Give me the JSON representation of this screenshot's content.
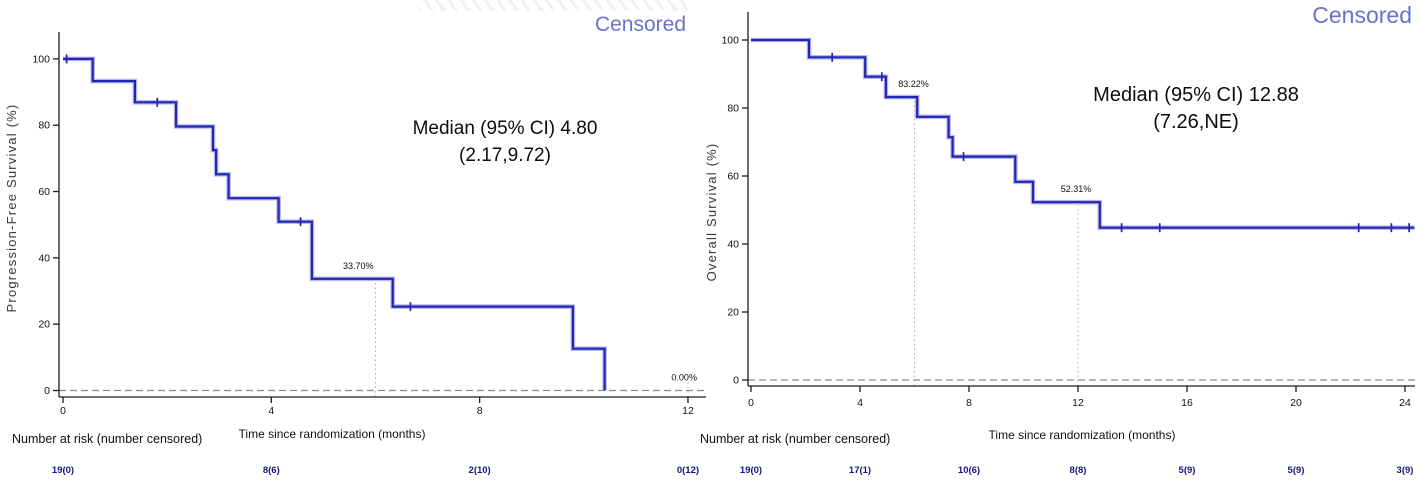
{
  "colors": {
    "curve": "#2424b2",
    "censored_text": "#6673c9",
    "risk_text": "#15157e"
  },
  "chart_data": [
    {
      "type": "line",
      "subtype": "kaplan-meier-step",
      "ylabel": "Progression-Free Survival (%)",
      "xlabel": "Time since randomization (months)",
      "censored_label": "Censored",
      "median_label": [
        "Median (95% CI) 4.80",
        "(2.17,9.72)"
      ],
      "xlim": [
        0,
        12
      ],
      "ylim": [
        0,
        100
      ],
      "x_ticks": [
        0,
        4,
        8,
        12
      ],
      "y_ticks": [
        0,
        20,
        40,
        60,
        80,
        100
      ],
      "steps": [
        [
          0,
          100
        ],
        [
          0.57,
          93.3
        ],
        [
          1.38,
          86.9
        ],
        [
          2.17,
          79.6
        ],
        [
          2.88,
          72.5
        ],
        [
          2.94,
          65.2
        ],
        [
          3.18,
          58.0
        ],
        [
          4.14,
          50.9
        ],
        [
          4.78,
          33.7
        ],
        [
          6.33,
          25.3
        ],
        [
          9.79,
          12.6
        ],
        [
          10.4,
          0
        ]
      ],
      "censor_marks": [
        [
          0.07,
          100
        ],
        [
          1.81,
          86.9
        ],
        [
          4.56,
          50.9
        ],
        [
          6.67,
          25.3
        ]
      ],
      "end_month": 10.4,
      "landmarks": [
        {
          "month": 6,
          "top_pct": 33.7
        },
        {
          "month": 12,
          "top_pct": 5
        }
      ],
      "annotations": [
        {
          "label": "33.70%",
          "month": 6,
          "pct": 33.7,
          "anchor": "end",
          "dx": -2
        },
        {
          "label": "0.00%",
          "month": 12,
          "pct": 0,
          "anchor": "end",
          "dx": 9
        }
      ],
      "risk_header": "Number at risk (number censored)",
      "risk_months": [
        0,
        4,
        8,
        12
      ],
      "risk_values": [
        "19(0)",
        "8(6)",
        "2(10)",
        "0(12)"
      ]
    },
    {
      "type": "line",
      "subtype": "kaplan-meier-step",
      "ylabel": "Overall Survival (%)",
      "xlabel": "Time since randomization (months)",
      "censored_label": "Censored",
      "median_label": [
        "Median (95% CI) 12.88",
        "(7.26,NE)"
      ],
      "xlim": [
        0,
        24
      ],
      "ylim": [
        0,
        100
      ],
      "x_ticks": [
        0,
        4,
        8,
        12,
        16,
        20,
        24
      ],
      "y_ticks": [
        0,
        20,
        40,
        60,
        80,
        100
      ],
      "steps": [
        [
          0,
          100
        ],
        [
          2.13,
          94.9
        ],
        [
          4.19,
          89.2
        ],
        [
          4.95,
          83.2
        ],
        [
          6.1,
          77.4
        ],
        [
          7.25,
          71.4
        ],
        [
          7.4,
          65.7
        ],
        [
          9.7,
          58.3
        ],
        [
          10.35,
          52.3
        ],
        [
          12.8,
          44.8
        ]
      ],
      "censor_marks": [
        [
          2.98,
          94.9
        ],
        [
          4.8,
          89.2
        ],
        [
          7.8,
          65.7
        ],
        [
          13.6,
          44.8
        ],
        [
          15.0,
          44.8
        ],
        [
          22.3,
          44.8
        ],
        [
          23.5,
          44.8
        ],
        [
          24.15,
          44.8
        ]
      ],
      "end_month": 24.35,
      "landmarks": [
        {
          "month": 6,
          "top_pct": 83.2
        },
        {
          "month": 12,
          "top_pct": 52.3
        }
      ],
      "annotations": [
        {
          "label": "83.22%",
          "month": 6,
          "pct": 83.2,
          "anchor": "middle",
          "dx": -1
        },
        {
          "label": "52.31%",
          "month": 12,
          "pct": 52.3,
          "anchor": "middle",
          "dx": -2
        }
      ],
      "risk_header": "Number at risk (number censored)",
      "risk_months": [
        0,
        4,
        8,
        12,
        16,
        20,
        24
      ],
      "risk_values": [
        "19(0)",
        "17(1)",
        "10(6)",
        "8(8)",
        "5(9)",
        "5(9)",
        "3(9)"
      ]
    }
  ]
}
